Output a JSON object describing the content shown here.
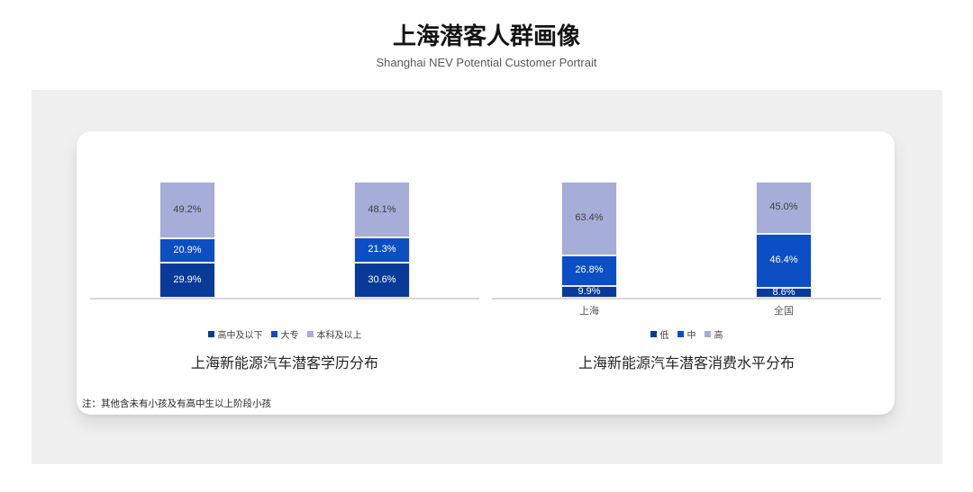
{
  "page": {
    "title": "上海潜客人群画像",
    "subtitle": "Shanghai NEV Potential Customer Portrait",
    "note": "注：其他含未有小孩及有高中生以上阶段小孩"
  },
  "colors": {
    "panel_bg": "#F0F0F0",
    "card_bg": "#FFFFFF",
    "axis_line": "#D9D9D9",
    "series_dark_blue": "#0A3A99",
    "series_medium_blue": "#0C4EC4",
    "series_lavender": "#A5ADD8"
  },
  "chart_data": [
    {
      "type": "bar",
      "stacked": true,
      "title": "上海新能源汽车潜客学历分布",
      "categories": [
        "",
        ""
      ],
      "series": [
        {
          "name": "高中及以下",
          "values": [
            29.9,
            30.6
          ],
          "color": "#0A3A99",
          "label_color": "#FFFFFF"
        },
        {
          "name": "大专",
          "values": [
            20.9,
            21.3
          ],
          "color": "#0C4EC4",
          "label_color": "#FFFFFF"
        },
        {
          "name": "本科及以上",
          "values": [
            49.2,
            48.1
          ],
          "color": "#A5ADD8",
          "label_color": "#404040"
        }
      ],
      "value_suffix": "%",
      "ylim": [
        0,
        100
      ],
      "legend_position": "bottom",
      "grid": false
    },
    {
      "type": "bar",
      "stacked": true,
      "title": "上海新能源汽车潜客消费水平分布",
      "categories": [
        "上海",
        "全国"
      ],
      "series": [
        {
          "name": "低",
          "values": [
            9.9,
            8.6
          ],
          "color": "#0A3A99",
          "label_color": "#FFFFFF"
        },
        {
          "name": "中",
          "values": [
            26.8,
            46.4
          ],
          "color": "#0C4EC4",
          "label_color": "#FFFFFF"
        },
        {
          "name": "高",
          "values": [
            63.4,
            45.0
          ],
          "color": "#A5ADD8",
          "label_color": "#404040"
        }
      ],
      "value_suffix": "%",
      "ylim": [
        0,
        100
      ],
      "legend_position": "bottom",
      "grid": false
    }
  ]
}
